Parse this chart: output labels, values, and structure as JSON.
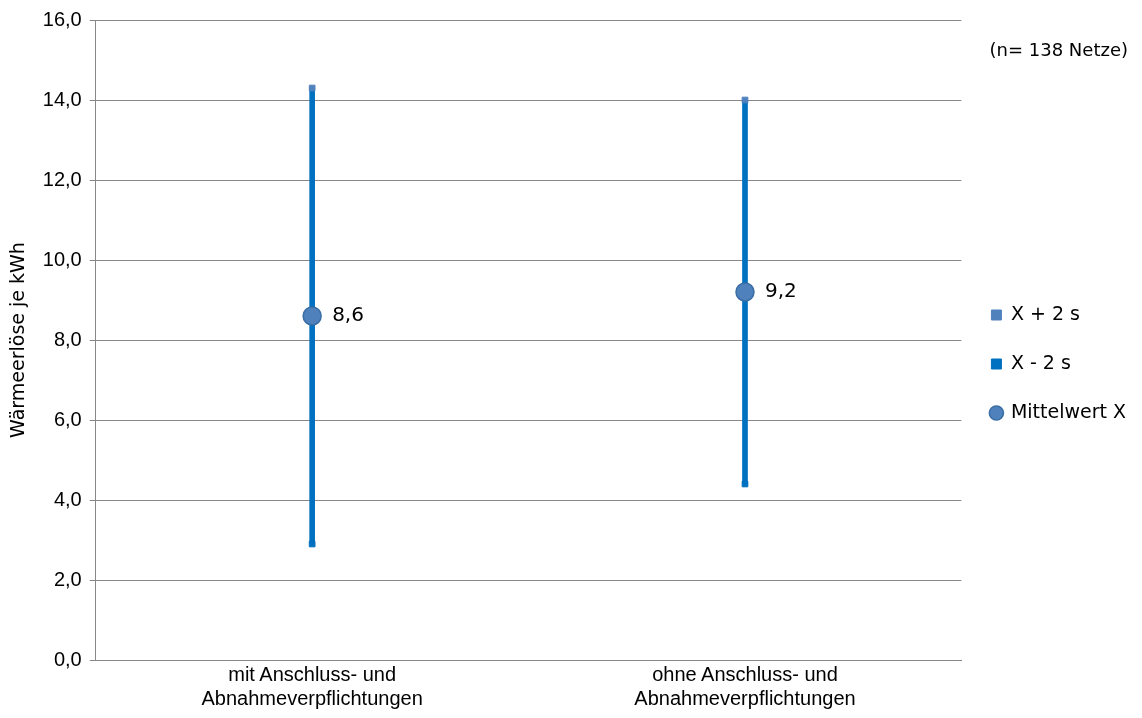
{
  "chart_data": {
    "type": "scatter",
    "ylabel": "Wärmeerlöse je kWh",
    "categories": [
      "mit Anschluss- und Abnahmeverpflichtungen",
      "ohne Anschluss- und Abnahmeverpflichtungen"
    ],
    "series": [
      {
        "name": "X + 2 s",
        "color": "#4f81bd",
        "marker": "square",
        "values": [
          14.3,
          14.0
        ]
      },
      {
        "name": "X - 2 s",
        "color": "#0070c0",
        "marker": "square",
        "values": [
          2.9,
          4.4
        ]
      },
      {
        "type": "bar",
        "color": "#0070c0",
        "base": [
          2.9,
          4.4
        ],
        "values": [
          11.4,
          9.6
        ]
      },
      {
        "name": "Mittelwert X",
        "color": "#4f81bd",
        "marker": "circle",
        "values": [
          8.6,
          9.2
        ],
        "value_labels": [
          "8,6",
          "9,2"
        ]
      }
    ],
    "ylim": [
      0,
      16
    ],
    "yticks": [
      {
        "value": 0,
        "label": "0,0"
      },
      {
        "value": 2,
        "label": "2,0"
      },
      {
        "value": 4,
        "label": "4,0"
      },
      {
        "value": 6,
        "label": "6,0"
      },
      {
        "value": 8,
        "label": "8,0"
      },
      {
        "value": 10,
        "label": "10,0"
      },
      {
        "value": 12,
        "label": "12,0"
      },
      {
        "value": 14,
        "label": "14,0"
      },
      {
        "value": 16,
        "label": "16,0"
      }
    ],
    "grid": "y",
    "legend": "right",
    "annotations": [
      "(n= 138 Netze)"
    ]
  }
}
